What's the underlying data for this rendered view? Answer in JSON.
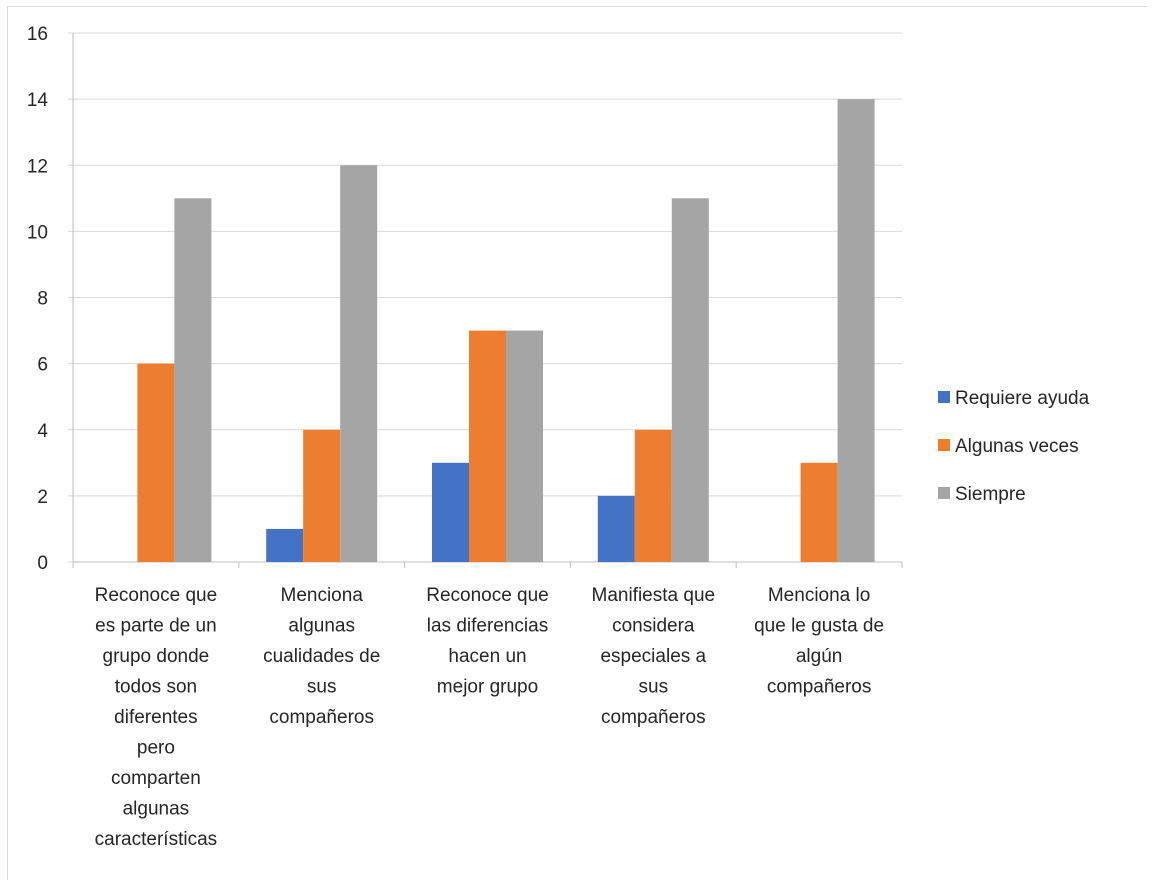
{
  "chart_data": {
    "type": "bar",
    "categories": [
      [
        "Reconoce que",
        "es parte de un",
        "grupo donde",
        "todos son",
        "diferentes",
        "pero",
        "comparten",
        "algunas",
        "características"
      ],
      [
        "Menciona",
        "algunas",
        "cualidades de",
        "sus",
        "compañeros"
      ],
      [
        "Reconoce que",
        "las diferencias",
        "hacen un",
        "mejor grupo"
      ],
      [
        "Manifiesta que",
        "considera",
        "especiales a",
        "sus",
        "compañeros"
      ],
      [
        "Menciona lo",
        "que le gusta de",
        "algún",
        "compañeros"
      ]
    ],
    "series": [
      {
        "name": "Requiere ayuda",
        "color": "#4472c4",
        "values": [
          0,
          1,
          3,
          2,
          0
        ]
      },
      {
        "name": "Algunas veces",
        "color": "#ed7d31",
        "values": [
          6,
          4,
          7,
          4,
          3
        ]
      },
      {
        "name": "Siempre",
        "color": "#a5a5a5",
        "values": [
          11,
          12,
          7,
          11,
          14
        ]
      }
    ],
    "ylim": [
      0,
      16
    ],
    "yticks": [
      "0",
      "2",
      "4",
      "6",
      "8",
      "10",
      "12",
      "14",
      "16"
    ],
    "grid": true,
    "legend_position": "right"
  }
}
